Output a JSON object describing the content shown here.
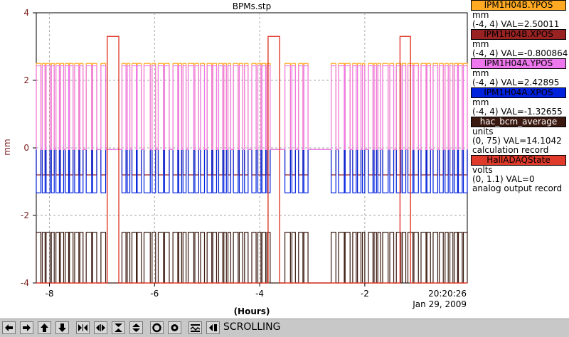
{
  "chart_data": {
    "type": "line",
    "title": "BPMs.stp",
    "ylabel": "mm",
    "xlabel": "(Hours)",
    "xlim": [
      -8.25,
      -0.05
    ],
    "ylim": [
      -4,
      4
    ],
    "xticks": [
      -8,
      -6,
      -4,
      -2
    ],
    "yticks": [
      -4,
      -2,
      0,
      2,
      4
    ],
    "grid": true,
    "time_label": "20:20:26",
    "date_label": "Jan 29, 2009",
    "series": [
      {
        "name": "IPM1H04B.YPOS",
        "color": "#ffaa22",
        "unit": "mm",
        "range": "(-4, 4)",
        "value": "VAL=2.50011",
        "level": 2.5
      },
      {
        "name": "IPM1H04B.XPOS",
        "color": "#992222",
        "unit": "mm",
        "range": "(-4, 4)",
        "value": "VAL=-0.800864",
        "level": -0.8
      },
      {
        "name": "IPM1H04A.YPOS",
        "color": "#ee77ee",
        "unit": "mm",
        "range": "(-4, 4)",
        "value": "VAL=2.42895",
        "level": 2.43
      },
      {
        "name": "IPM1H04A.XPOS",
        "color": "#0022dd",
        "unit": "mm",
        "range": "(-4, 4)",
        "value": "VAL=-1.32655",
        "level": -1.33
      },
      {
        "name": "hac_bcm_average",
        "color": "#3a1a10",
        "unit": "units",
        "range": "(0, 75)",
        "value": "VAL=14.1042",
        "extra": "calculation record",
        "level": -2.5,
        "low": -4.0
      },
      {
        "name": "HallADAQState",
        "color": "#e03a2a",
        "unit": "volts",
        "range": "(0, 1.1)",
        "value": "VAL=0",
        "extra": "analog output record",
        "level": -4.0,
        "high": 3.3
      }
    ],
    "beam_on_periods": [
      [
        -8.25,
        -7.55
      ],
      [
        -7.52,
        -7.36
      ],
      [
        -7.3,
        -7.1
      ],
      [
        -7.02,
        -6.93
      ],
      [
        -6.62,
        -6.47
      ],
      [
        -6.43,
        -6.25
      ],
      [
        -6.2,
        -5.98
      ],
      [
        -5.93,
        -5.72
      ],
      [
        -5.65,
        -5.4
      ],
      [
        -5.36,
        -5.05
      ],
      [
        -5.0,
        -4.82
      ],
      [
        -4.78,
        -4.55
      ],
      [
        -4.5,
        -4.22
      ],
      [
        -4.15,
        -3.8
      ],
      [
        -3.52,
        -3.32
      ],
      [
        -3.26,
        -3.08
      ],
      [
        -2.64,
        -2.55
      ],
      [
        -2.5,
        -2.28
      ],
      [
        -2.23,
        -2.0
      ],
      [
        -1.93,
        -1.7
      ],
      [
        -1.66,
        -1.45
      ],
      [
        -1.4,
        -1.22
      ],
      [
        -1.18,
        -0.98
      ],
      [
        -0.93,
        -0.75
      ],
      [
        -0.7,
        -0.05
      ]
    ],
    "daq_on_periods": [
      [
        -6.9,
        -6.68
      ],
      [
        -3.84,
        -3.62
      ],
      [
        -1.33,
        -1.13
      ]
    ],
    "beam_off_level": -0.05
  },
  "toolbar": {
    "mode_label": "SCROLLING",
    "buttons": [
      "arrow-left-icon",
      "arrow-right-icon",
      "arrow-up-icon",
      "arrow-down-icon",
      "zoom-in-x-icon",
      "zoom-out-x-icon",
      "zoom-in-y-icon",
      "zoom-out-y-icon",
      "camera-icon",
      "config-icon",
      "autoscale-icon",
      "history-icon"
    ]
  }
}
